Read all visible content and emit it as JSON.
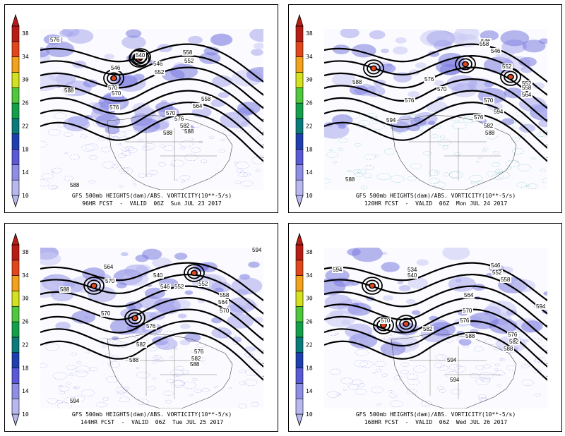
{
  "colorbar": {
    "ticks": [
      "38",
      "34",
      "30",
      "26",
      "22",
      "18",
      "14",
      "10"
    ],
    "colors": [
      "#b8b8f0",
      "#8e8ee6",
      "#5a5ad8",
      "#1d3fb0",
      "#0a7a7a",
      "#14a04a",
      "#4fc83c",
      "#d4e21e",
      "#f4a21c",
      "#e2461a",
      "#b81c14"
    ]
  },
  "panels": [
    {
      "line1": "GFS 500mb HEIGHTS(dam)/ABS. VORTICITY(10**-5/s)",
      "line2": "96HR FCST  -  VALID  06Z  Sun JUL 23 2017",
      "contour_labels": [
        "576",
        "540",
        "546",
        "552",
        "558",
        "552",
        "546",
        "570",
        "570",
        "576",
        "588",
        "558",
        "564",
        "570",
        "576",
        "582",
        "588",
        "588",
        "588"
      ]
    },
    {
      "line1": "GFS 500mb HEIGHTS(dam)/ABS. VORTICITY(10**-5/s)",
      "line2": "120HR FCST  -  VALID  06Z  Mon JUL 24 2017",
      "contour_labels": [
        "546",
        "552",
        "558",
        "552",
        "546",
        "570",
        "576",
        "576",
        "588",
        "594",
        "558",
        "564",
        "570",
        "576",
        "582",
        "588",
        "594",
        "588"
      ]
    },
    {
      "line1": "GFS 500mb HEIGHTS(dam)/ABS. VORTICITY(10**-5/s)",
      "line2": "144HR FCST  -  VALID  06Z  Tue JUL 25 2017",
      "contour_labels": [
        "564",
        "570",
        "552",
        "594",
        "540",
        "546",
        "552",
        "558",
        "564",
        "588",
        "570",
        "570",
        "576",
        "582",
        "576",
        "582",
        "588",
        "594",
        "588"
      ]
    },
    {
      "line1": "GFS 500mb HEIGHTS(dam)/ABS. VORTICITY(10**-5/s)",
      "line2": "168HR FCST  -  VALID  06Z  Wed JUL 26 2017",
      "contour_labels": [
        "594",
        "534",
        "540",
        "546",
        "552",
        "558",
        "564",
        "570",
        "570",
        "576",
        "582",
        "588",
        "576",
        "582",
        "588",
        "594",
        "594",
        "594"
      ]
    }
  ]
}
